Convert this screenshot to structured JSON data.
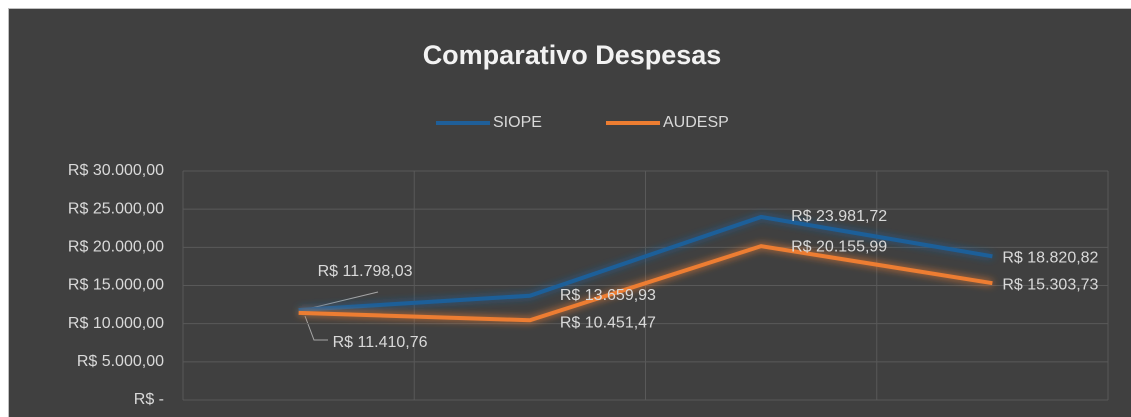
{
  "chart_data": {
    "type": "line",
    "title": "Comparativo Despesas",
    "categories": [
      null,
      null,
      null,
      null
    ],
    "series": [
      {
        "name": "SIOPE",
        "color": "#1f5f99",
        "values": [
          11798.03,
          13659.93,
          23981.72,
          18820.82
        ],
        "value_labels": [
          "R$ 11.798,03",
          "R$ 13.659,93",
          "R$ 23.981,72",
          "R$ 18.820,82"
        ]
      },
      {
        "name": "AUDESP",
        "color": "#ed7d31",
        "values": [
          11410.76,
          10451.47,
          20155.99,
          15303.73
        ],
        "value_labels": [
          "R$ 11.410,76",
          "R$ 10.451,47",
          "R$ 20.155,99",
          "R$ 15.303,73"
        ]
      }
    ],
    "ylim": [
      0,
      30000
    ],
    "yticks": [
      {
        "value": 0,
        "label": "R$ -"
      },
      {
        "value": 5000,
        "label": "R$ 5.000,00"
      },
      {
        "value": 10000,
        "label": "R$ 10.000,00"
      },
      {
        "value": 15000,
        "label": "R$ 15.000,00"
      },
      {
        "value": 20000,
        "label": "R$ 20.000,00"
      },
      {
        "value": 25000,
        "label": "R$ 25.000,00"
      },
      {
        "value": 30000,
        "label": "R$ 30.000,00"
      }
    ],
    "grid": true,
    "legend": "top"
  }
}
